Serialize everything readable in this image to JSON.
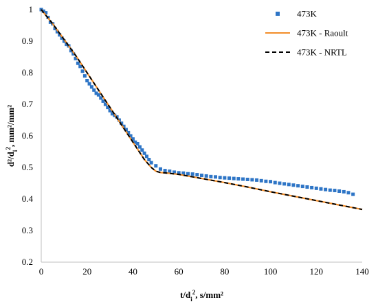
{
  "chart_data": {
    "type": "scatter",
    "title": "",
    "xlabel": "t/d",
    "xlabel_sub": "i",
    "xlabel_sup": "2",
    "xlabel_tail": ", s/mm²",
    "ylabel": "d²/d",
    "ylabel_sub": "i",
    "ylabel_sup": "2",
    "ylabel_tail": ", mm²/mm²",
    "xlim": [
      0,
      140
    ],
    "ylim": [
      0.2,
      1.0
    ],
    "xticks": [
      0,
      20,
      40,
      60,
      80,
      100,
      120,
      140
    ],
    "yticks": [
      0.2,
      0.3,
      0.4,
      0.5,
      0.6,
      0.7,
      0.8,
      0.9,
      1.0
    ],
    "xtick_labels": [
      "0",
      "20",
      "40",
      "60",
      "80",
      "100",
      "120",
      "140"
    ],
    "ytick_labels": [
      "0.2",
      "0.3",
      "0.4",
      "0.5",
      "0.6",
      "0.7",
      "0.8",
      "0.9",
      "1"
    ],
    "grid": false,
    "legend_position": "top-right",
    "series": [
      {
        "name": "473K",
        "kind": "scatter",
        "color": "#2e75c6",
        "x": [
          0,
          1,
          2,
          3,
          4,
          5,
          6,
          7,
          8,
          9,
          10,
          11,
          12,
          13,
          14,
          15,
          16,
          17,
          18,
          19,
          20,
          21,
          22,
          23,
          24,
          25,
          26,
          27,
          28,
          29,
          30,
          31,
          32,
          33,
          34,
          35,
          36,
          37,
          38,
          39,
          40,
          41,
          42,
          43,
          44,
          45,
          46,
          47,
          48,
          50,
          52,
          54,
          56,
          58,
          60,
          62,
          64,
          66,
          68,
          70,
          72,
          74,
          76,
          78,
          80,
          82,
          84,
          86,
          88,
          90,
          92,
          94,
          96,
          98,
          100,
          102,
          104,
          106,
          108,
          110,
          112,
          114,
          116,
          118,
          120,
          122,
          124,
          126,
          128,
          130,
          132,
          134,
          136
        ],
        "y": [
          1.0,
          0.995,
          0.99,
          0.975,
          0.96,
          0.955,
          0.94,
          0.93,
          0.92,
          0.91,
          0.9,
          0.89,
          0.885,
          0.87,
          0.86,
          0.845,
          0.83,
          0.82,
          0.805,
          0.79,
          0.775,
          0.765,
          0.755,
          0.745,
          0.735,
          0.73,
          0.72,
          0.71,
          0.7,
          0.69,
          0.68,
          0.67,
          0.665,
          0.66,
          0.65,
          0.64,
          0.63,
          0.62,
          0.61,
          0.6,
          0.59,
          0.58,
          0.575,
          0.565,
          0.555,
          0.545,
          0.535,
          0.525,
          0.515,
          0.505,
          0.495,
          0.49,
          0.488,
          0.485,
          0.483,
          0.482,
          0.48,
          0.479,
          0.477,
          0.475,
          0.473,
          0.471,
          0.47,
          0.468,
          0.467,
          0.466,
          0.465,
          0.464,
          0.463,
          0.462,
          0.461,
          0.46,
          0.458,
          0.456,
          0.455,
          0.452,
          0.45,
          0.448,
          0.446,
          0.444,
          0.442,
          0.44,
          0.438,
          0.436,
          0.434,
          0.432,
          0.43,
          0.428,
          0.427,
          0.425,
          0.423,
          0.42,
          0.415
        ]
      },
      {
        "name": "473K - Raoult",
        "kind": "line",
        "color": "#f28c28",
        "dash": "solid",
        "x": [
          0,
          5,
          10,
          15,
          20,
          25,
          30,
          35,
          40,
          45,
          48,
          50,
          52,
          55,
          60,
          70,
          80,
          90,
          100,
          110,
          120,
          130,
          140
        ],
        "y": [
          1.0,
          0.955,
          0.905,
          0.855,
          0.8,
          0.745,
          0.69,
          0.635,
          0.58,
          0.525,
          0.5,
          0.488,
          0.484,
          0.482,
          0.478,
          0.465,
          0.452,
          0.438,
          0.423,
          0.409,
          0.395,
          0.381,
          0.367
        ]
      },
      {
        "name": "473K - NRTL",
        "kind": "line",
        "color": "#000000",
        "dash": "dashed",
        "x": [
          0,
          5,
          10,
          15,
          20,
          25,
          30,
          35,
          40,
          45,
          48,
          50,
          52,
          55,
          60,
          70,
          80,
          90,
          100,
          110,
          120,
          130,
          140
        ],
        "y": [
          1.0,
          0.955,
          0.905,
          0.855,
          0.8,
          0.745,
          0.69,
          0.635,
          0.58,
          0.525,
          0.5,
          0.488,
          0.484,
          0.482,
          0.478,
          0.465,
          0.452,
          0.438,
          0.423,
          0.409,
          0.395,
          0.381,
          0.367
        ]
      }
    ]
  }
}
